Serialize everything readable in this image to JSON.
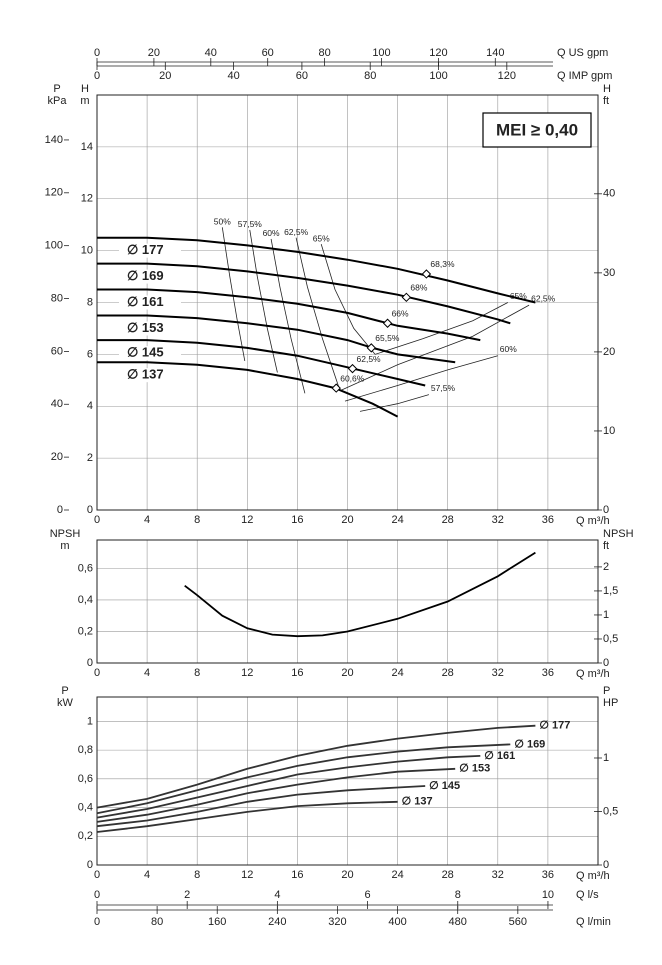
{
  "chart_data": [
    {
      "type": "line",
      "xlabel": "Q m³/h",
      "xlim": [
        0,
        40
      ],
      "xticks": [
        0,
        4,
        8,
        12,
        16,
        20,
        24,
        28,
        32,
        36
      ],
      "ylabel": [
        "H",
        "m"
      ],
      "ylim": [
        0,
        16
      ],
      "yticks": [
        0,
        2,
        4,
        6,
        8,
        10,
        12,
        14
      ],
      "y2label": [
        "H",
        "ft"
      ],
      "y2lim": [
        0,
        52.5
      ],
      "y2ticks": [
        0,
        10,
        20,
        30,
        40
      ],
      "y3label": [
        "P",
        "kPa"
      ],
      "y3lim": [
        0,
        157
      ],
      "y3ticks": [
        0,
        20,
        40,
        60,
        80,
        100,
        120,
        140
      ],
      "x2label": "Q US gpm",
      "x2lim": [
        0,
        176.1
      ],
      "x2ticks": [
        0,
        20,
        40,
        60,
        80,
        100,
        120,
        140
      ],
      "x3label": "Q IMP gpm",
      "x3lim": [
        0,
        146.7
      ],
      "x3ticks": [
        0,
        20,
        40,
        60,
        80,
        100,
        120
      ],
      "grid": true,
      "label_position": "start",
      "annotation": "MEI ≥ 0,40",
      "series": [
        {
          "name": "∅ 177",
          "color": "#000000",
          "x": [
            0,
            4,
            8,
            12,
            16,
            20,
            24,
            28,
            32,
            35
          ],
          "values": [
            10.5,
            10.5,
            10.4,
            10.2,
            9.95,
            9.65,
            9.3,
            8.85,
            8.35,
            8.0
          ]
        },
        {
          "name": "∅ 169",
          "color": "#000000",
          "x": [
            0,
            4,
            8,
            12,
            16,
            20,
            24,
            28,
            32,
            33
          ],
          "values": [
            9.5,
            9.5,
            9.4,
            9.2,
            8.95,
            8.65,
            8.3,
            7.85,
            7.35,
            7.2
          ]
        },
        {
          "name": "∅ 161",
          "color": "#000000",
          "x": [
            0,
            4,
            8,
            12,
            16,
            20,
            24,
            28,
            30.6
          ],
          "values": [
            8.5,
            8.5,
            8.4,
            8.2,
            7.95,
            7.6,
            7.1,
            6.8,
            6.55
          ]
        },
        {
          "name": "∅ 153",
          "color": "#000000",
          "x": [
            0,
            4,
            8,
            12,
            16,
            20,
            22,
            24,
            28.6
          ],
          "values": [
            7.5,
            7.5,
            7.4,
            7.2,
            6.95,
            6.55,
            6.25,
            6.0,
            5.7
          ]
        },
        {
          "name": "∅ 145",
          "color": "#000000",
          "x": [
            0,
            4,
            8,
            12,
            16,
            20,
            24,
            26.2
          ],
          "values": [
            6.55,
            6.55,
            6.45,
            6.25,
            5.95,
            5.5,
            5.05,
            4.8
          ]
        },
        {
          "name": "∅ 137",
          "color": "#000000",
          "x": [
            0,
            4,
            8,
            12,
            16,
            19,
            22,
            24
          ],
          "values": [
            5.7,
            5.7,
            5.6,
            5.4,
            5.05,
            4.7,
            4.1,
            3.6
          ]
        }
      ],
      "bep": {
        "x": [
          26.3,
          24.7,
          23.2,
          21.9,
          20.4,
          19.1
        ],
        "values": [
          9.1,
          8.2,
          7.2,
          6.25,
          5.45,
          4.7
        ],
        "labels": [
          "68,3%",
          "68%",
          "66%",
          "65,5%",
          "62,5%",
          "60,6%"
        ]
      },
      "efficiency_lines": [
        {
          "label": "50%",
          "label_at": "start",
          "x": [
            10,
            10.6,
            11.2,
            11.8
          ],
          "values": [
            10.9,
            9,
            7.3,
            5.75
          ]
        },
        {
          "label": "57,5%",
          "label_at": "start",
          "x": [
            12.2,
            12.8,
            13.6,
            14.4
          ],
          "values": [
            10.8,
            9,
            7,
            5.3
          ]
        },
        {
          "label": "60%",
          "label_at": "start",
          "x": [
            13.9,
            14.6,
            15.5,
            16.6
          ],
          "values": [
            10.45,
            8.6,
            6.6,
            4.5
          ]
        },
        {
          "label": "62,5%",
          "label_at": "start",
          "x": [
            15.9,
            16.8,
            18,
            19.4
          ],
          "values": [
            10.5,
            8.6,
            6.6,
            4.6
          ]
        },
        {
          "label": "65%",
          "label_at": "start",
          "x": [
            17.9,
            19,
            20.5,
            22.2
          ],
          "values": [
            10.25,
            8.5,
            7,
            6.0
          ]
        },
        {
          "label": "65%",
          "label_at": "end",
          "x": [
            22.2,
            26,
            30,
            32.8
          ],
          "values": [
            6.0,
            6.6,
            7.3,
            8.0
          ]
        },
        {
          "label": "62,5%",
          "label_at": "end",
          "x": [
            19.4,
            24,
            30,
            34.5
          ],
          "values": [
            4.6,
            5.6,
            6.7,
            7.9
          ]
        },
        {
          "label": "60%",
          "label_at": "end",
          "x": [
            19.8,
            24,
            28,
            32
          ],
          "values": [
            4.2,
            4.8,
            5.4,
            5.95
          ]
        },
        {
          "label": "57,5%",
          "label_at": "end",
          "x": [
            21,
            24,
            26.5
          ],
          "values": [
            3.8,
            4.1,
            4.45
          ]
        }
      ]
    },
    {
      "type": "line",
      "xlabel": "Q m³/h",
      "xlim": [
        0,
        40
      ],
      "xticks": [
        0,
        4,
        8,
        12,
        16,
        20,
        24,
        28,
        32,
        36
      ],
      "ylabel": [
        "NPSH",
        "m"
      ],
      "ylim": [
        0,
        0.78
      ],
      "yticks": [
        0,
        {
          "value": 0.2,
          "label": "0,2"
        },
        {
          "value": 0.4,
          "label": "0,4"
        },
        {
          "value": 0.6,
          "label": "0,6"
        }
      ],
      "y2label": [
        "NPSH",
        "ft"
      ],
      "y2lim": [
        0,
        2.56
      ],
      "y2ticks": [
        0,
        {
          "value": 0.5,
          "label": "0,5"
        },
        1,
        {
          "value": 1.5,
          "label": "1,5"
        },
        2
      ],
      "grid": true,
      "series": [
        {
          "color": "#000000",
          "x": [
            7,
            8,
            10,
            12,
            14,
            16,
            18,
            20,
            24,
            28,
            32,
            35
          ],
          "values": [
            0.49,
            0.43,
            0.3,
            0.22,
            0.18,
            0.17,
            0.175,
            0.2,
            0.28,
            0.39,
            0.55,
            0.7
          ]
        }
      ]
    },
    {
      "type": "line",
      "xlabel": "Q m³/h",
      "xlim": [
        0,
        40
      ],
      "xticks": [
        0,
        4,
        8,
        12,
        16,
        20,
        24,
        28,
        32,
        36
      ],
      "ylabel": [
        "P",
        "kW"
      ],
      "ylim": [
        0,
        1.17
      ],
      "yticks": [
        0,
        {
          "value": 0.2,
          "label": "0,2"
        },
        {
          "value": 0.4,
          "label": "0,4"
        },
        {
          "value": 0.6,
          "label": "0,6"
        },
        {
          "value": 0.8,
          "label": "0,8"
        },
        1
      ],
      "y2label": [
        "P",
        "HP"
      ],
      "y2lim": [
        0,
        1.57
      ],
      "y2ticks": [
        0,
        {
          "value": 0.5,
          "label": "0,5"
        },
        1
      ],
      "x2label": "Q l/s",
      "x2lim": [
        0,
        11.11
      ],
      "x2ticks": [
        0,
        2,
        4,
        6,
        8,
        10
      ],
      "x3label": "Q l/min",
      "x3lim": [
        0,
        666.7
      ],
      "x3ticks": [
        0,
        80,
        160,
        240,
        320,
        400,
        480,
        560
      ],
      "grid": true,
      "label_position": "end",
      "series": [
        {
          "name": "∅ 177",
          "color": "#333333",
          "x": [
            0,
            4,
            8,
            12,
            16,
            20,
            24,
            28,
            32,
            35
          ],
          "values": [
            0.4,
            0.46,
            0.56,
            0.67,
            0.76,
            0.83,
            0.88,
            0.92,
            0.955,
            0.97
          ]
        },
        {
          "name": "∅ 169",
          "color": "#333333",
          "x": [
            0,
            4,
            8,
            12,
            16,
            20,
            24,
            28,
            33
          ],
          "values": [
            0.36,
            0.43,
            0.52,
            0.61,
            0.69,
            0.75,
            0.79,
            0.82,
            0.84
          ]
        },
        {
          "name": "∅ 161",
          "color": "#333333",
          "x": [
            0,
            4,
            8,
            12,
            16,
            20,
            24,
            28,
            30.6
          ],
          "values": [
            0.33,
            0.39,
            0.47,
            0.55,
            0.63,
            0.68,
            0.72,
            0.75,
            0.76
          ]
        },
        {
          "name": "∅ 153",
          "color": "#333333",
          "x": [
            0,
            4,
            8,
            12,
            16,
            20,
            24,
            28.6
          ],
          "values": [
            0.3,
            0.35,
            0.42,
            0.5,
            0.56,
            0.61,
            0.65,
            0.67
          ]
        },
        {
          "name": "∅ 145",
          "color": "#333333",
          "x": [
            0,
            4,
            8,
            12,
            16,
            20,
            24,
            26.2
          ],
          "values": [
            0.27,
            0.31,
            0.37,
            0.44,
            0.49,
            0.52,
            0.54,
            0.55
          ]
        },
        {
          "name": "∅ 137",
          "color": "#333333",
          "x": [
            0,
            4,
            8,
            12,
            16,
            20,
            24
          ],
          "values": [
            0.23,
            0.27,
            0.32,
            0.37,
            0.41,
            0.43,
            0.44
          ]
        }
      ]
    }
  ]
}
